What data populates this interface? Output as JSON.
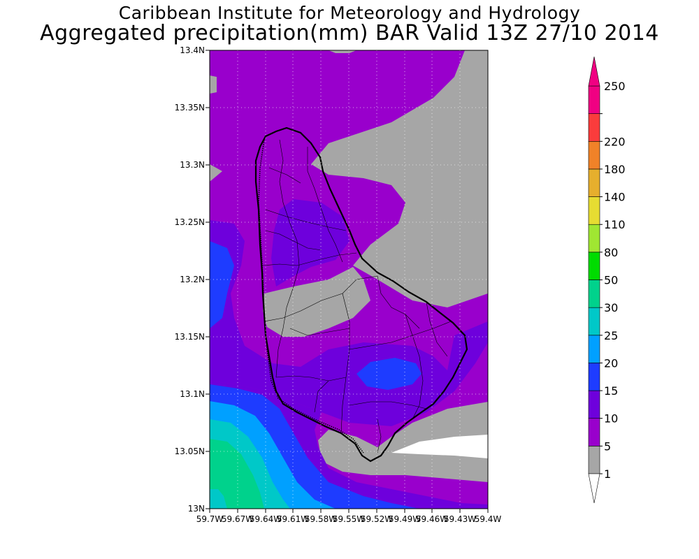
{
  "title": {
    "line1": "Caribbean Institute for Meteorology and Hydrology",
    "line2": "Aggregated precipitation(mm) BAR Valid 13Z 27/10 2014"
  },
  "axes": {
    "lat_ticks": [
      "13.4N",
      "13.35N",
      "13.3N",
      "13.25N",
      "13.2N",
      "13.15N",
      "13.1N",
      "13.05N",
      "13N"
    ],
    "lon_ticks": [
      "59.7W",
      "59.67W",
      "59.64W",
      "59.61W",
      "59.58W",
      "59.55W",
      "59.52W",
      "59.49W",
      "59.46W",
      "59.43W",
      "59.4W"
    ]
  },
  "colorbar": {
    "labels": [
      "1",
      "5",
      "10",
      "15",
      "20",
      "25",
      "30",
      "50",
      "80",
      "110",
      "140",
      "180",
      "220",
      "250"
    ],
    "colors": [
      "#a6a6a6",
      "#9900cc",
      "#6e00dc",
      "#1e3cff",
      "#00a0ff",
      "#00c8c8",
      "#00d28c",
      "#00dc00",
      "#a0e632",
      "#e6dc32",
      "#e6af2d",
      "#f08228",
      "#fa3c3c",
      "#f00082"
    ],
    "below_color": "#ffffff",
    "above_color": "#f00082"
  },
  "field_colors": {
    "gray": "#a6a6a6",
    "purple": "#9900cc",
    "violet": "#6e00dc",
    "blue": "#1e3cff",
    "lightblue": "#00a0ff",
    "cyan": "#00c8c8",
    "green": "#00d28c",
    "white": "#ffffff"
  }
}
